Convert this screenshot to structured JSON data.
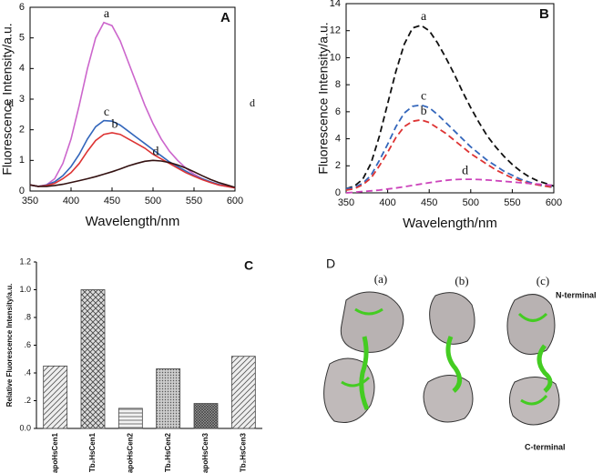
{
  "chart_data": [
    {
      "type": "line",
      "panel_label": "A",
      "x_label": "Wavelength/nm",
      "y_label": "Fluorescence Intensity/a.u.",
      "x": [
        350,
        360,
        370,
        380,
        390,
        400,
        410,
        420,
        430,
        440,
        450,
        460,
        470,
        480,
        490,
        500,
        510,
        520,
        530,
        540,
        550,
        560,
        570,
        580,
        590,
        600
      ],
      "series": [
        {
          "name": "a",
          "color": "#cc66cc",
          "values": [
            0.2,
            0.15,
            0.2,
            0.4,
            0.9,
            1.7,
            2.8,
            4.0,
            5.0,
            5.5,
            5.4,
            4.9,
            4.2,
            3.5,
            2.8,
            2.2,
            1.7,
            1.3,
            1.0,
            0.75,
            0.55,
            0.4,
            0.3,
            0.2,
            0.15,
            0.1
          ]
        },
        {
          "name": "c",
          "color": "#3366bb",
          "values": [
            0.2,
            0.15,
            0.2,
            0.3,
            0.5,
            0.8,
            1.2,
            1.7,
            2.1,
            2.3,
            2.28,
            2.15,
            1.95,
            1.75,
            1.55,
            1.35,
            1.15,
            0.95,
            0.8,
            0.65,
            0.5,
            0.4,
            0.3,
            0.22,
            0.16,
            0.12
          ]
        },
        {
          "name": "b",
          "color": "#dd3333",
          "values": [
            0.2,
            0.15,
            0.18,
            0.25,
            0.4,
            0.6,
            0.9,
            1.3,
            1.65,
            1.85,
            1.9,
            1.85,
            1.7,
            1.55,
            1.4,
            1.2,
            1.05,
            0.9,
            0.75,
            0.6,
            0.48,
            0.37,
            0.28,
            0.2,
            0.15,
            0.1
          ]
        },
        {
          "name": "d",
          "color": "#331111",
          "values": [
            0.2,
            0.15,
            0.15,
            0.18,
            0.22,
            0.28,
            0.34,
            0.4,
            0.47,
            0.55,
            0.63,
            0.72,
            0.82,
            0.9,
            0.97,
            1.0,
            0.98,
            0.93,
            0.85,
            0.75,
            0.63,
            0.5,
            0.38,
            0.28,
            0.2,
            0.12
          ]
        }
      ],
      "line_style": "solid",
      "xlim": [
        350,
        600
      ],
      "xticks": [
        350,
        400,
        450,
        500,
        550,
        600
      ],
      "ylim": [
        0,
        6
      ],
      "yticks": [
        0,
        1,
        2,
        3,
        4,
        5,
        6
      ],
      "annotations": [
        "d",
        "d"
      ]
    },
    {
      "type": "line",
      "panel_label": "B",
      "x_label": "Wavelength/nm",
      "y_label": "Fluorescence Intensity/a.u.",
      "x": [
        350,
        360,
        370,
        380,
        390,
        400,
        410,
        420,
        430,
        440,
        450,
        460,
        470,
        480,
        490,
        500,
        510,
        520,
        530,
        540,
        550,
        560,
        570,
        580,
        590,
        600
      ],
      "series": [
        {
          "name": "a",
          "color": "#111111",
          "values": [
            0.3,
            0.5,
            1.0,
            2.2,
            4.2,
            6.6,
            9.0,
            11.0,
            12.2,
            12.4,
            12.0,
            11.1,
            10.0,
            8.8,
            7.5,
            6.3,
            5.2,
            4.2,
            3.4,
            2.7,
            2.1,
            1.6,
            1.2,
            0.9,
            0.7,
            0.5
          ]
        },
        {
          "name": "c",
          "color": "#3366bb",
          "values": [
            0.3,
            0.4,
            0.7,
            1.3,
            2.4,
            3.6,
            4.9,
            5.9,
            6.4,
            6.5,
            6.3,
            5.8,
            5.2,
            4.6,
            4.0,
            3.4,
            2.9,
            2.4,
            2.0,
            1.6,
            1.3,
            1.0,
            0.8,
            0.6,
            0.5,
            0.4
          ]
        },
        {
          "name": "b",
          "color": "#dd3333",
          "values": [
            0.2,
            0.3,
            0.6,
            1.1,
            2.0,
            3.0,
            4.1,
            4.9,
            5.3,
            5.4,
            5.2,
            4.8,
            4.4,
            3.9,
            3.4,
            2.9,
            2.5,
            2.1,
            1.7,
            1.4,
            1.1,
            0.9,
            0.7,
            0.6,
            0.5,
            0.4
          ]
        },
        {
          "name": "d",
          "color": "#cc44bb",
          "values": [
            0.0,
            0.05,
            0.1,
            0.15,
            0.2,
            0.28,
            0.36,
            0.45,
            0.55,
            0.65,
            0.75,
            0.84,
            0.92,
            0.98,
            1.0,
            1.0,
            0.98,
            0.95,
            0.9,
            0.85,
            0.8,
            0.75,
            0.7,
            0.65,
            0.6,
            0.55
          ]
        }
      ],
      "line_style": "dashed",
      "xlim": [
        350,
        600
      ],
      "xticks": [
        350,
        400,
        450,
        500,
        550,
        600
      ],
      "ylim": [
        0,
        14
      ],
      "yticks": [
        0,
        2,
        4,
        6,
        8,
        10,
        12,
        14
      ]
    },
    {
      "type": "bar",
      "panel_label": "C",
      "y_label": "Relative Fluorescence Intensity/a.u.",
      "categories": [
        "apoHsCen1",
        "Tb₂HsCen1",
        "apoHsCen2",
        "Tb₂HsCen2",
        "apoHsCen3",
        "Tb₂HsCen3"
      ],
      "values": [
        0.45,
        1.0,
        0.145,
        0.43,
        0.18,
        0.52
      ],
      "hatches": [
        "diagonal",
        "crosshatch",
        "horizontal",
        "dots",
        "dense",
        "diagonal"
      ],
      "color": "#444444",
      "ylim": [
        0,
        1.2
      ],
      "yticks": [
        {
          "value": 0,
          "label": "0.0"
        },
        {
          "value": 0.2,
          "label": ".2"
        },
        {
          "value": 0.4,
          "label": ".4"
        },
        {
          "value": 0.6,
          "label": ".6"
        },
        {
          "value": 0.8,
          "label": ".8"
        },
        {
          "value": 1.0,
          "label": "1.0"
        },
        1.2
      ]
    }
  ],
  "structure_panel": {
    "label": "D",
    "columns": [
      "(a)",
      "(b)",
      "(c)"
    ],
    "n_terminal": "N-terminal",
    "c_terminal": "C-terminal"
  }
}
